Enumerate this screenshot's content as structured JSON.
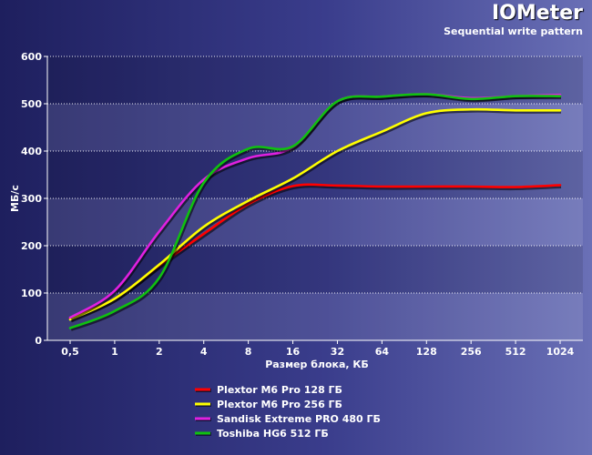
{
  "chart_data": {
    "type": "line",
    "title": "IOMeter",
    "subtitle": "Sequential write pattern",
    "xlabel": "Размер блока, КБ",
    "ylabel": "МБ/с",
    "ylim": [
      0,
      600
    ],
    "yticks": [
      "0",
      "100",
      "200",
      "300",
      "400",
      "500",
      "600"
    ],
    "categories": [
      "0,5",
      "1",
      "2",
      "4",
      "8",
      "16",
      "32",
      "64",
      "128",
      "256",
      "512",
      "1024"
    ],
    "grid": true,
    "legend_position": "bottom",
    "series": [
      {
        "name": "Plextor M6 Pro 128 ГБ",
        "color": "#ff0000",
        "values": [
          46,
          88,
          158,
          225,
          288,
          326,
          327,
          325,
          325,
          325,
          324,
          328
        ]
      },
      {
        "name": "Plextor M6 Pro 256 ГБ",
        "color": "#ffff00",
        "values": [
          44,
          88,
          160,
          240,
          295,
          342,
          400,
          441,
          480,
          488,
          486,
          486
        ]
      },
      {
        "name": "Sandisk Extreme PRO 480 ГБ",
        "color": "#e020e0",
        "values": [
          48,
          105,
          230,
          340,
          385,
          408,
          505,
          515,
          520,
          512,
          516,
          519
        ]
      },
      {
        "name": "Toshiba HG6 512 ГБ",
        "color": "#10c010",
        "values": [
          26,
          62,
          132,
          333,
          405,
          410,
          505,
          515,
          520,
          510,
          516,
          516
        ]
      }
    ]
  }
}
